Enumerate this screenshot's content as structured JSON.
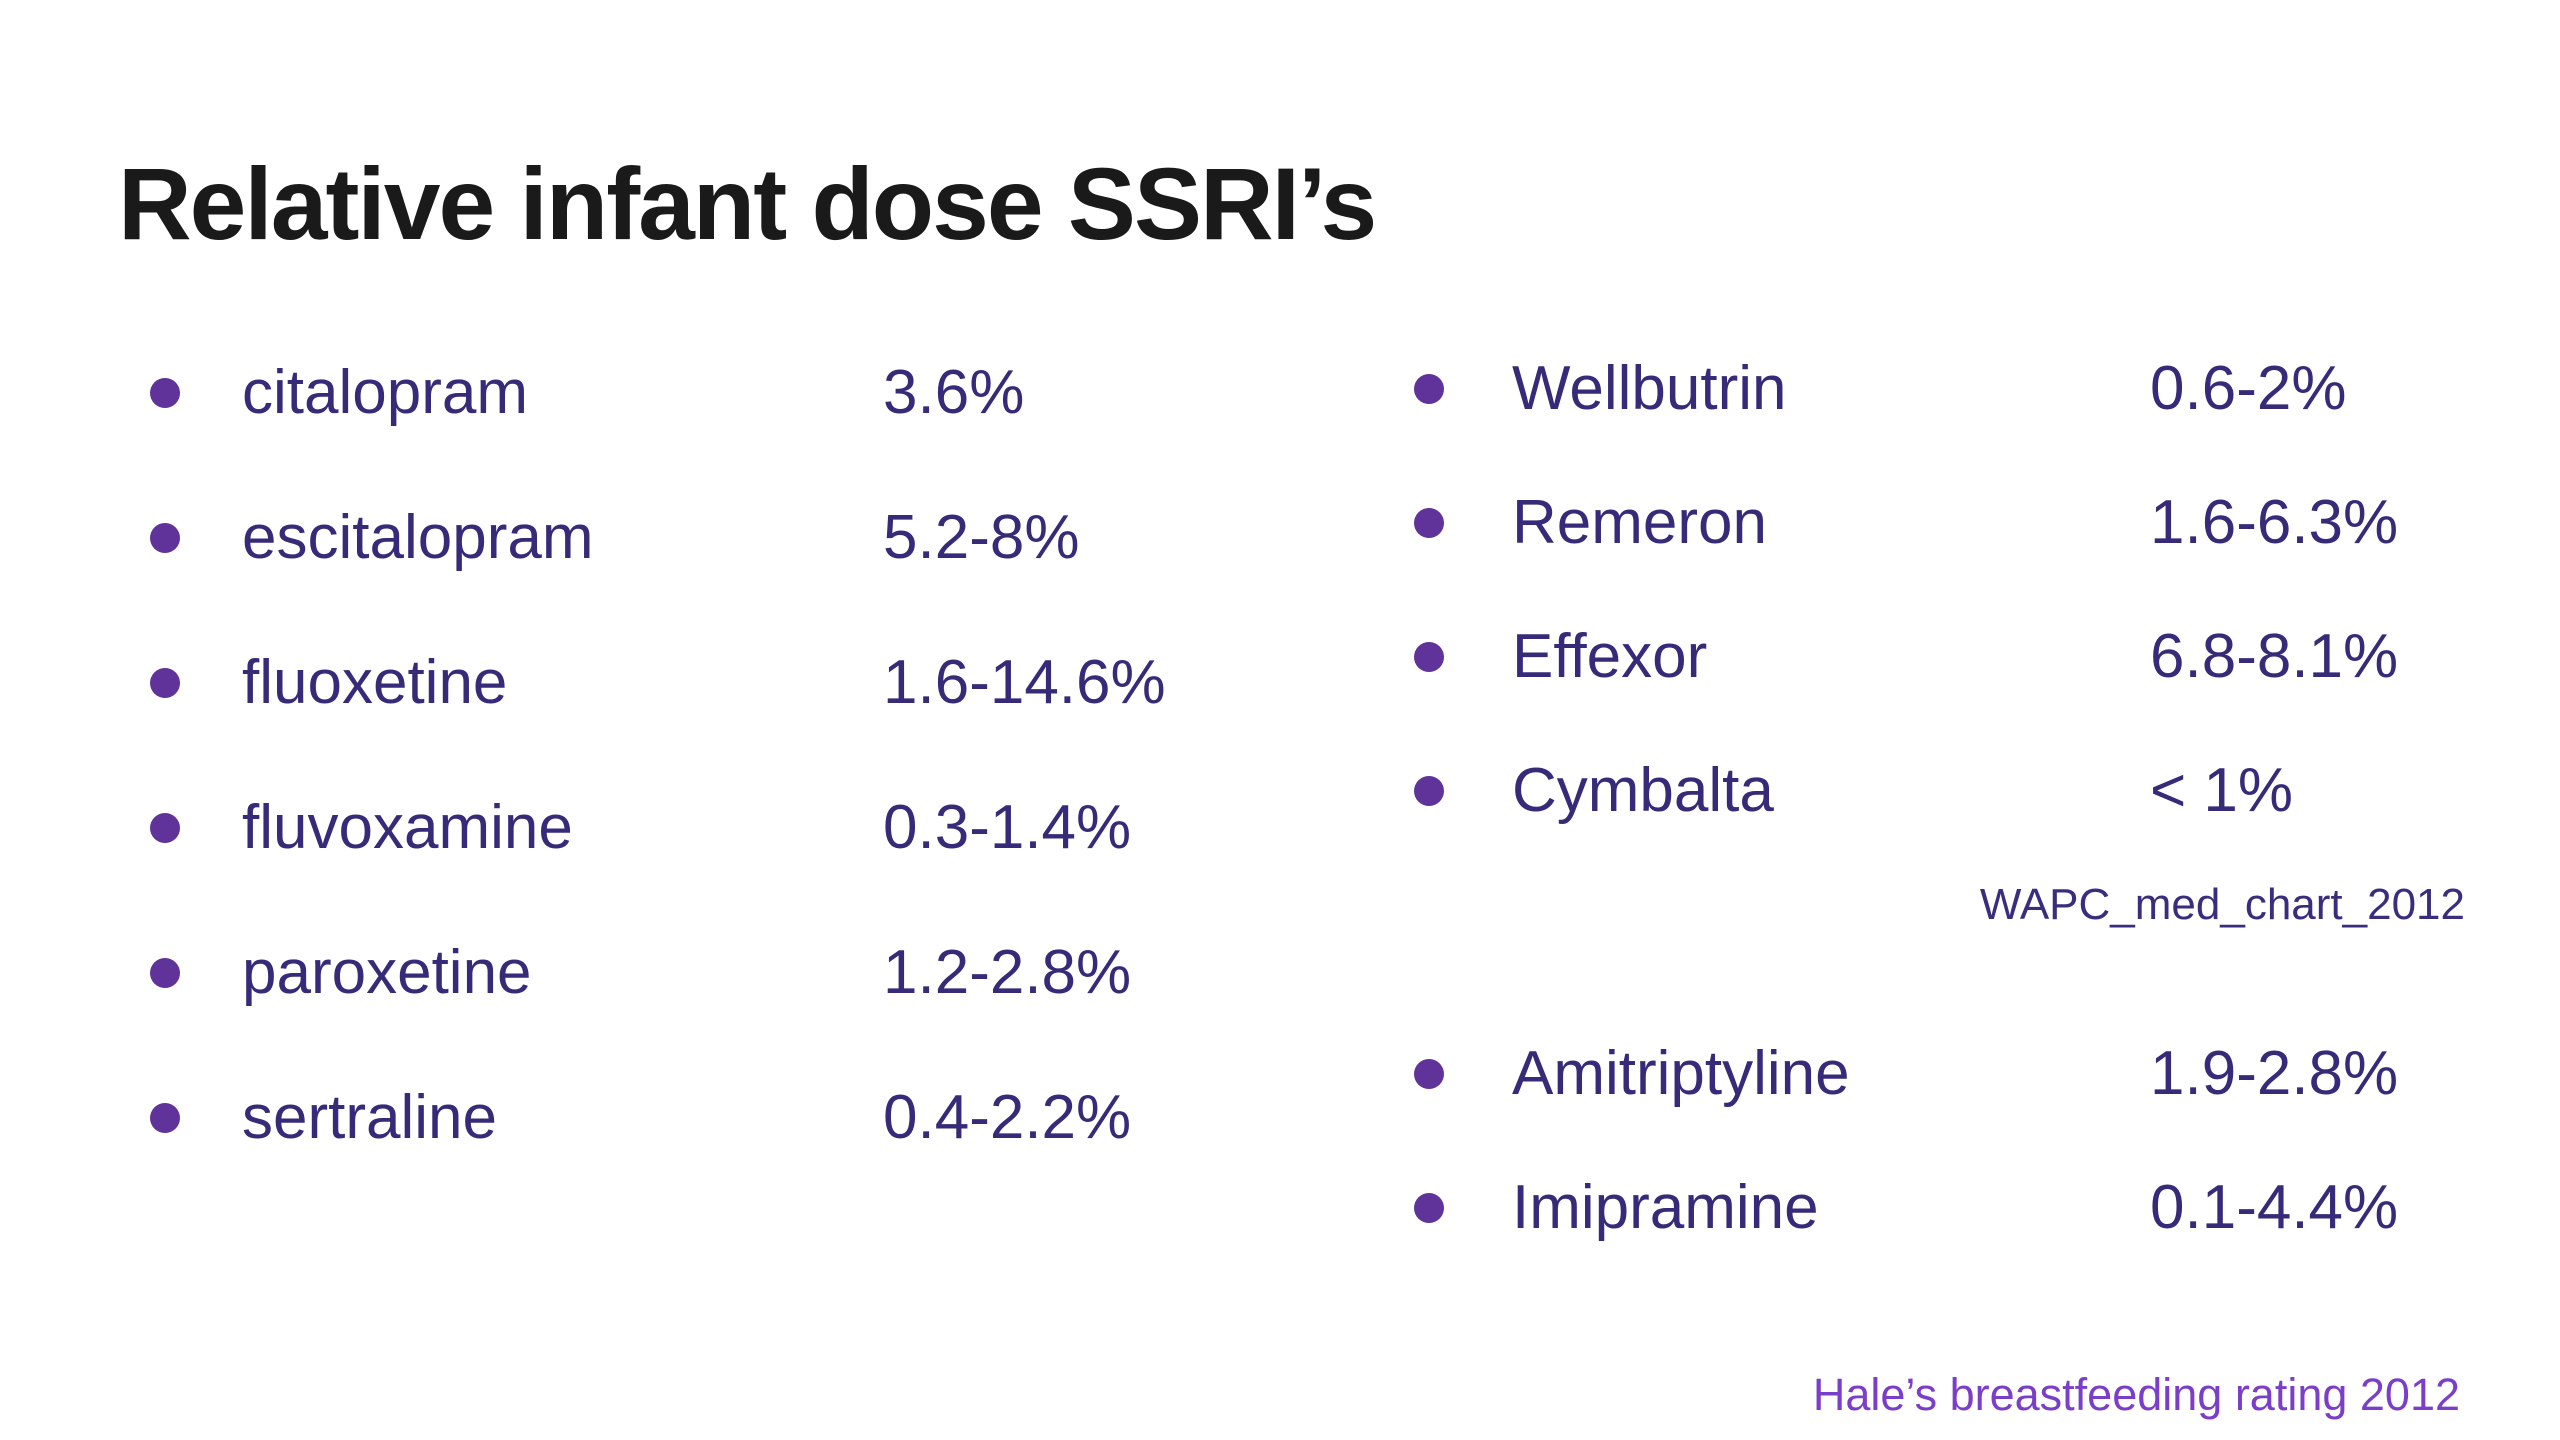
{
  "title": "Relative infant dose SSRI’s",
  "lists": {
    "left": {
      "items": [
        {
          "name": "citalopram",
          "value": "3.6%"
        },
        {
          "name": "escitalopram",
          "value": "5.2-8%"
        },
        {
          "name": "fluoxetine",
          "value": "1.6-14.6%"
        },
        {
          "name": "fluvoxamine",
          "value": "0.3-1.4%"
        },
        {
          "name": "paroxetine",
          "value": "1.2-2.8%"
        },
        {
          "name": "sertraline",
          "value": "0.4-2.2%"
        }
      ]
    },
    "right_upper": {
      "items": [
        {
          "name": "Wellbutrin",
          "value": "0.6-2%"
        },
        {
          "name": "Remeron",
          "value": "1.6-6.3%"
        },
        {
          "name": "Effexor",
          "value": "6.8-8.1%"
        },
        {
          "name": "Cymbalta",
          "value": "< 1%"
        }
      ]
    },
    "right_lower": {
      "items": [
        {
          "name": "Amitriptyline",
          "value": "1.9-2.8%"
        },
        {
          "name": "Imipramine",
          "value": "0.1-4.4%"
        }
      ]
    }
  },
  "source_note": "WAPC_med_chart_2012",
  "footer_note": "Hale’s breastfeeding rating 2012",
  "colors": {
    "background": "#ffffff",
    "title_text": "#1a1a1a",
    "item_text": "#372a78",
    "bullet": "#5f3399",
    "source_note_text": "#3b2d7d",
    "footer_note_text": "#7b3ec9"
  },
  "chart_data": {
    "type": "table",
    "title": "Relative infant dose SSRI’s",
    "columns": [
      "medication",
      "relative_infant_dose"
    ],
    "rows": [
      [
        "citalopram",
        "3.6%"
      ],
      [
        "escitalopram",
        "5.2-8%"
      ],
      [
        "fluoxetine",
        "1.6-14.6%"
      ],
      [
        "fluvoxamine",
        "0.3-1.4%"
      ],
      [
        "paroxetine",
        "1.2-2.8%"
      ],
      [
        "sertraline",
        "0.4-2.2%"
      ],
      [
        "Wellbutrin",
        "0.6-2%"
      ],
      [
        "Remeron",
        "1.6-6.3%"
      ],
      [
        "Effexor",
        "6.8-8.1%"
      ],
      [
        "Cymbalta",
        "< 1%"
      ],
      [
        "Amitriptyline",
        "1.9-2.8%"
      ],
      [
        "Imipramine",
        "0.1-4.4%"
      ]
    ],
    "annotations": [
      "WAPC_med_chart_2012",
      "Hale’s breastfeeding rating 2012"
    ]
  }
}
